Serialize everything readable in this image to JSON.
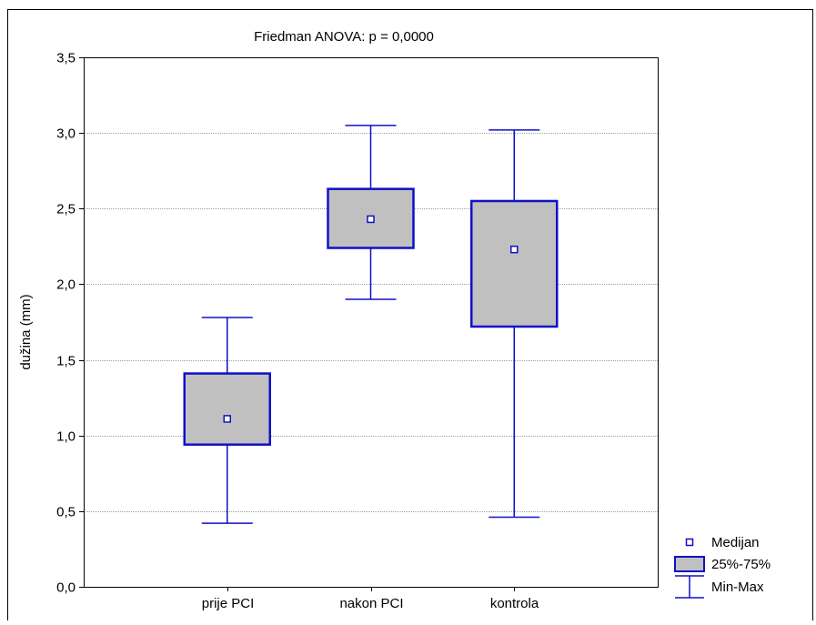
{
  "chart_data": {
    "type": "boxplot",
    "title": "Friedman ANOVA: p = 0,0000",
    "xlabel": "",
    "ylabel": "dužina (mm)",
    "ylim": [
      0,
      3.5
    ],
    "yticks": [
      0,
      0.5,
      1.0,
      1.5,
      2.0,
      2.5,
      3.0,
      3.5
    ],
    "ytick_labels": [
      "0,0",
      "0,5",
      "1,0",
      "1,5",
      "2,0",
      "2,5",
      "3,0",
      "3,5"
    ],
    "grid": true,
    "categories": [
      "prije PCI",
      "nakon PCI",
      "kontrola"
    ],
    "boxes": [
      {
        "category": "prije PCI",
        "min": 0.42,
        "q1": 0.94,
        "median": 1.11,
        "q3": 1.41,
        "max": 1.78
      },
      {
        "category": "nakon PCI",
        "min": 1.9,
        "q1": 2.24,
        "median": 2.43,
        "q3": 2.63,
        "max": 3.05
      },
      {
        "category": "kontrola",
        "min": 0.46,
        "q1": 1.72,
        "median": 2.23,
        "q3": 2.55,
        "max": 3.02
      }
    ],
    "legend": {
      "position": "bottom-right",
      "entries": [
        {
          "label": "Medijan",
          "symbol": "median-square"
        },
        {
          "label": "25%-75%",
          "symbol": "box"
        },
        {
          "label": "Min-Max",
          "symbol": "whisker"
        }
      ]
    },
    "colors": {
      "box_stroke": "#1010c8",
      "box_fill": "#c0c0c0",
      "grid": "#a0a0a0",
      "median_fill": "#ffffff"
    }
  }
}
